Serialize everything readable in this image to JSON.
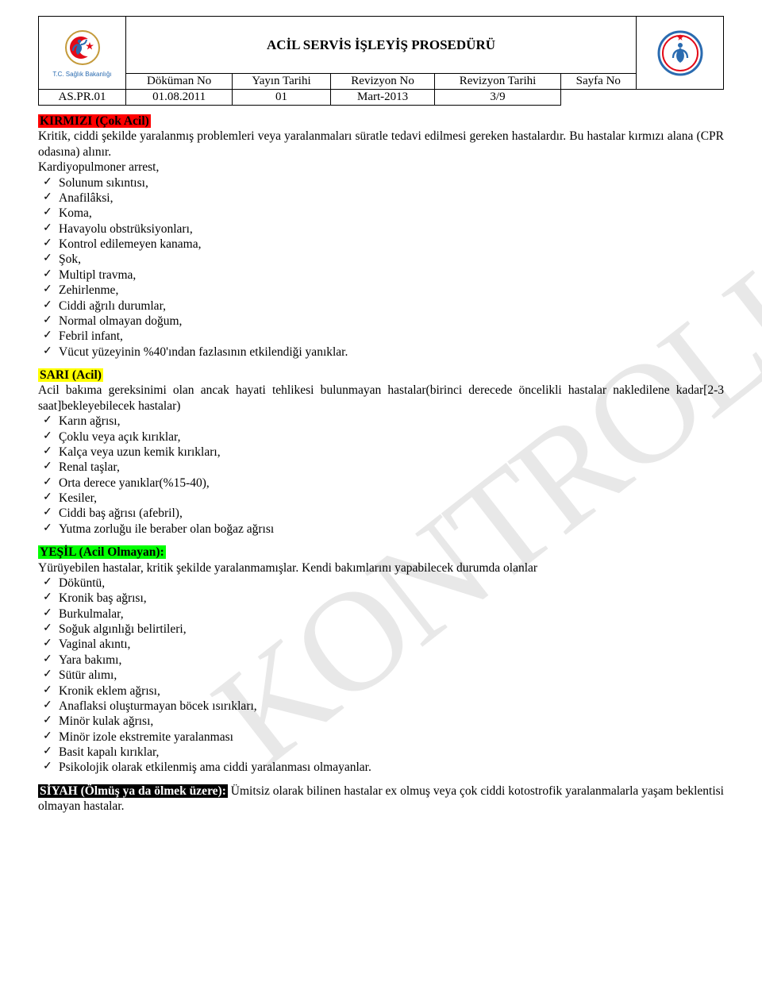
{
  "watermark": "KONTROLLÜ KOPYA",
  "header": {
    "title": "ACİL SERVİS İŞLEYİŞ PROSEDÜRÜ",
    "ministry_caption": "T.C. Sağlık Bakanlığı",
    "columns": [
      "Döküman No",
      "Yayın Tarihi",
      "Revizyon No",
      "Revizyon Tarihi",
      "Sayfa No"
    ],
    "values": [
      "AS.PR.01",
      "01.08.2011",
      "01",
      "Mart-2013",
      "3/9"
    ]
  },
  "sections": {
    "red": {
      "heading": "KIRMIZI (Çok Acil)",
      "intro": "Kritik, ciddi şekilde yaralanmış problemleri veya yaralanmaları süratle tedavi edilmesi gereken hastalardır. Bu hastalar kırmızı alana (CPR odasına) alınır.",
      "lead": "Kardiyopulmoner arrest,",
      "items": [
        "Solunum sıkıntısı,",
        "Anafilâksi,",
        "Koma,",
        "Havayolu obstrüksiyonları,",
        "Kontrol edilemeyen kanama,",
        "Şok,",
        "Multipl travma,",
        "Zehirlenme,",
        "Ciddi ağrılı durumlar,",
        "Normal olmayan doğum,",
        "Febril infant,",
        "Vücut yüzeyinin %40'ından fazlasının etkilendiği yanıklar."
      ]
    },
    "yellow": {
      "heading": "SARI (Acil)",
      "intro": "Acil bakıma gereksinimi olan ancak hayati tehlikesi bulunmayan hastalar(birinci derecede öncelikli hastalar nakledilene kadar[2-3 saat]bekleyebilecek hastalar)",
      "items": [
        "Karın ağrısı,",
        "Çoklu veya açık kırıklar,",
        "Kalça veya uzun kemik kırıkları,",
        "Renal taşlar,",
        "Orta derece yanıklar(%15-40),",
        "Kesiler,",
        "Ciddi baş ağrısı (afebril),",
        "Yutma zorluğu ile beraber olan boğaz ağrısı"
      ]
    },
    "green": {
      "heading": "YEŞİL (Acil Olmayan):",
      "intro": "Yürüyebilen hastalar, kritik şekilde yaralanmamışlar. Kendi bakımlarını yapabilecek durumda olanlar",
      "items": [
        "Döküntü,",
        "Kronik baş ağrısı,",
        "Burkulmalar,",
        "Soğuk algınlığı belirtileri,",
        "Vaginal akıntı,",
        "Yara bakımı,",
        "Sütür alımı,",
        "Kronik eklem ağrısı,",
        "Anaflaksi oluşturmayan böcek ısırıkları,",
        "Minör kulak ağrısı,",
        "Minör izole ekstremite yaralanması",
        "Basit kapalı kırıklar,",
        "Psikolojik olarak etkilenmiş ama ciddi yaralanması olmayanlar."
      ]
    },
    "black": {
      "heading": "SİYAH (Ölmüş ya da ölmek üzere):",
      "text": "Ümitsiz olarak bilinen hastalar ex olmuş veya çok ciddi kotostrofik yaralanmalarla yaşam beklentisi olmayan hastalar."
    }
  },
  "colors": {
    "red_bg": "#ff0000",
    "yellow_bg": "#ffff00",
    "green_bg": "#00ff00",
    "black_bg": "#000000",
    "black_fg": "#ffffff",
    "watermark": "#e8e8e8",
    "text": "#000000",
    "ministry_blue": "#2a6bb0",
    "logo_red": "#e30a17",
    "logo_blue": "#2a6bb0",
    "logo_gold": "#c49a3a"
  }
}
